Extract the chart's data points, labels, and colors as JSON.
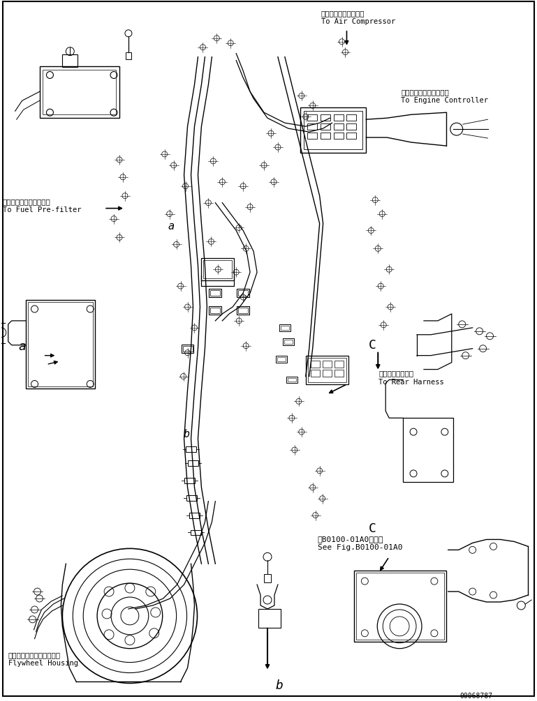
{
  "bg_color": "#ffffff",
  "line_color": "#000000",
  "fig_width": 7.69,
  "fig_height": 10.05,
  "dpi": 100,
  "labels": {
    "air_compressor_jp": "エアーコンプレッサヘ",
    "air_compressor_en": "To Air Compressor",
    "engine_controller_jp": "エンジンコントローラヘ",
    "engine_controller_en": "To Engine Controller",
    "fuel_prefilter_jp": "フェエルプリフィルタヘ",
    "fuel_prefilter_en": "To Fuel Pre-filter",
    "rear_harness_jp": "リヤーハーネスヘ",
    "rear_harness_en": "To Rear Harness",
    "flywheel_jp": "フライホイールハウジング",
    "flywheel_en": "Flywheel Housing",
    "see_fig_jp": "第B0100-01A0図参照",
    "see_fig_en": "See Fig.B0100-01A0",
    "label_a1": "a",
    "label_a2": "a",
    "label_b1": "b",
    "label_b2": "b",
    "label_c1": "C",
    "label_c2": "C",
    "part_number": "00068787"
  }
}
